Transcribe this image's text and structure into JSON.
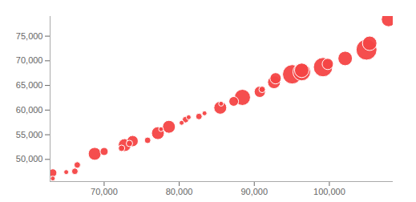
{
  "chart_data": {
    "type": "scatter",
    "color": "#f44545",
    "x": [
      63160,
      63160,
      64950,
      66100,
      66420,
      68740,
      70000,
      72320,
      72740,
      73370,
      73790,
      75790,
      77160,
      77580,
      78630,
      80320,
      80840,
      81260,
      82630,
      83370,
      85470,
      85580,
      87260,
      88420,
      90740,
      91050,
      92630,
      92840,
      95050,
      96320,
      96320,
      99160,
      99790,
      102110,
      104950,
      105370,
      107890
    ],
    "values": [
      47260,
      46130,
      47420,
      47580,
      48870,
      51130,
      51600,
      52260,
      52900,
      53230,
      53710,
      53870,
      55320,
      56130,
      56610,
      57420,
      58060,
      58550,
      58710,
      59350,
      60480,
      61290,
      61770,
      62580,
      63710,
      64190,
      65650,
      66450,
      67260,
      67740,
      68060,
      68710,
      69350,
      70480,
      72260,
      73550,
      78390
    ],
    "sizes": [
      5,
      3,
      3,
      4,
      4,
      8,
      5,
      4,
      8,
      4,
      7,
      4,
      8,
      3,
      8,
      3,
      4,
      3,
      4,
      3,
      8,
      3,
      6,
      10,
      7,
      4,
      8,
      7,
      12,
      11,
      9,
      12,
      7,
      9,
      13,
      9,
      9
    ],
    "xlim": [
      62800,
      108500
    ],
    "ylim": [
      45500,
      79000
    ],
    "xticks": [
      {
        "value": 70000,
        "label": "70,000"
      },
      {
        "value": 80000,
        "label": "80,000"
      },
      {
        "value": 90000,
        "label": "90,000"
      },
      {
        "value": 100000,
        "label": "100,000"
      }
    ],
    "yticks": [
      {
        "value": 50000,
        "label": "50,000"
      },
      {
        "value": 55000,
        "label": "55,000"
      },
      {
        "value": 60000,
        "label": "60,000"
      },
      {
        "value": 65000,
        "label": "65,000"
      },
      {
        "value": 70000,
        "label": "70,000"
      },
      {
        "value": 75000,
        "label": "75,000"
      }
    ],
    "grid": false
  }
}
